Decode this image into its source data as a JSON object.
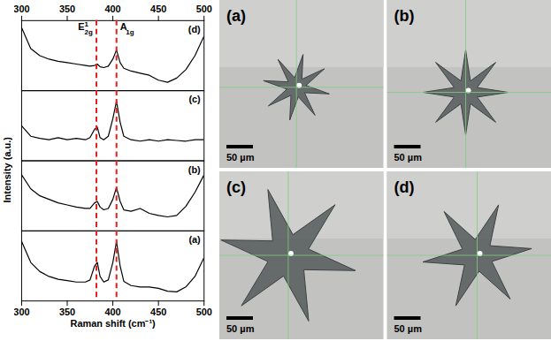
{
  "chart_data": {
    "type": "line",
    "xlabel": "Raman shift (cm⁻¹)",
    "ylabel": "Intensity (a.u.)",
    "xlim": [
      300,
      500
    ],
    "xticks": [
      300,
      350,
      400,
      450,
      500
    ],
    "ylim": [
      0,
      1
    ],
    "tick_labels": "x",
    "x": [
      300,
      310,
      320,
      330,
      340,
      350,
      360,
      370,
      375,
      380,
      383,
      386,
      390,
      395,
      400,
      404,
      408,
      412,
      420,
      430,
      440,
      450,
      460,
      470,
      480,
      490,
      500
    ],
    "series": [
      {
        "name": "(a)",
        "color": "#000000",
        "values": [
          0.85,
          0.55,
          0.42,
          0.35,
          0.31,
          0.29,
          0.27,
          0.27,
          0.3,
          0.5,
          0.55,
          0.35,
          0.27,
          0.3,
          0.55,
          0.85,
          0.5,
          0.28,
          0.22,
          0.2,
          0.2,
          0.18,
          0.14,
          0.13,
          0.2,
          0.35,
          0.62
        ]
      },
      {
        "name": "(b)",
        "color": "#000000",
        "values": [
          0.8,
          0.6,
          0.5,
          0.45,
          0.4,
          0.37,
          0.34,
          0.32,
          0.32,
          0.4,
          0.42,
          0.34,
          0.3,
          0.32,
          0.45,
          0.62,
          0.42,
          0.3,
          0.28,
          0.32,
          0.25,
          0.22,
          0.2,
          0.22,
          0.35,
          0.55,
          0.8
        ]
      },
      {
        "name": "(c)",
        "color": "#000000",
        "values": [
          0.5,
          0.35,
          0.32,
          0.3,
          0.33,
          0.3,
          0.32,
          0.3,
          0.33,
          0.45,
          0.48,
          0.33,
          0.3,
          0.35,
          0.6,
          0.85,
          0.55,
          0.35,
          0.3,
          0.28,
          0.3,
          0.28,
          0.3,
          0.29,
          0.28,
          0.3,
          0.3
        ]
      },
      {
        "name": "(d)",
        "color": "#000000",
        "values": [
          0.9,
          0.6,
          0.5,
          0.45,
          0.42,
          0.4,
          0.38,
          0.36,
          0.35,
          0.36,
          0.38,
          0.34,
          0.33,
          0.35,
          0.45,
          0.58,
          0.4,
          0.32,
          0.28,
          0.25,
          0.22,
          0.15,
          0.12,
          0.18,
          0.3,
          0.5,
          0.78
        ]
      }
    ],
    "annotations": [
      {
        "x": 382,
        "text": "E",
        "sub": "2g",
        "sup": "1",
        "color": "#e02020",
        "line_style": "dashed"
      },
      {
        "x": 404,
        "text": "A",
        "sub": "1g",
        "color": "#e02020",
        "line_style": "dashed"
      }
    ]
  },
  "photos": [
    {
      "label": "(a)",
      "scale_bar": "50 µm"
    },
    {
      "label": "(b)",
      "scale_bar": "50 µm"
    },
    {
      "label": "(c)",
      "scale_bar": "50 µm"
    },
    {
      "label": "(d)",
      "scale_bar": "50 µm"
    }
  ]
}
